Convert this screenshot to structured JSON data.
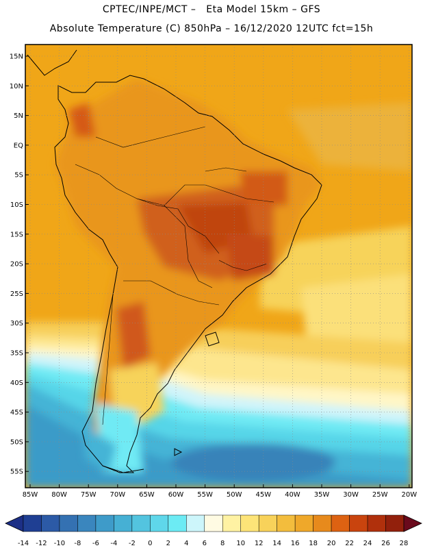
{
  "header": {
    "line1": "CPTEC/INPE/MCT –   Eta Model 15km – GFS",
    "line2": "Absolute Temperature (C) 850hPa – 16/12/2020 12UTC fct=15h"
  },
  "axes": {
    "lat_labels": [
      "15N",
      "10N",
      "5N",
      "EQ",
      "5S",
      "10S",
      "15S",
      "20S",
      "25S",
      "30S",
      "35S",
      "40S",
      "45S",
      "50S",
      "55S"
    ],
    "lon_labels": [
      "85W",
      "80W",
      "75W",
      "70W",
      "65W",
      "60W",
      "55W",
      "50W",
      "45W",
      "40W",
      "35W",
      "30W",
      "25W",
      "20W"
    ]
  },
  "colorbar": {
    "labels": [
      "-14",
      "-12",
      "-10",
      "-8",
      "-6",
      "-4",
      "-2",
      "0",
      "2",
      "4",
      "6",
      "8",
      "10",
      "12",
      "14",
      "16",
      "18",
      "20",
      "22",
      "24",
      "26",
      "28"
    ],
    "low_color": "#1c2f86",
    "high_color": "#6a0a1c",
    "colors": [
      "#1f3f93",
      "#2c5aa6",
      "#3471b2",
      "#3a86be",
      "#3e9bc9",
      "#46b0d4",
      "#53c4df",
      "#5fd7ea",
      "#6cebf4",
      "#cdf6fb",
      "#fffbe3",
      "#fff2a3",
      "#fde478",
      "#f8d25a",
      "#f3bd3d",
      "#efa82a",
      "#e78a1c",
      "#dd6212",
      "#c9440e",
      "#b0300c",
      "#92200c"
    ]
  },
  "map": {
    "ocean_color": "#f0a618",
    "land_color": "#e9961a",
    "hot_color": "#c44a10",
    "cold_color": "#4cc4dc"
  }
}
